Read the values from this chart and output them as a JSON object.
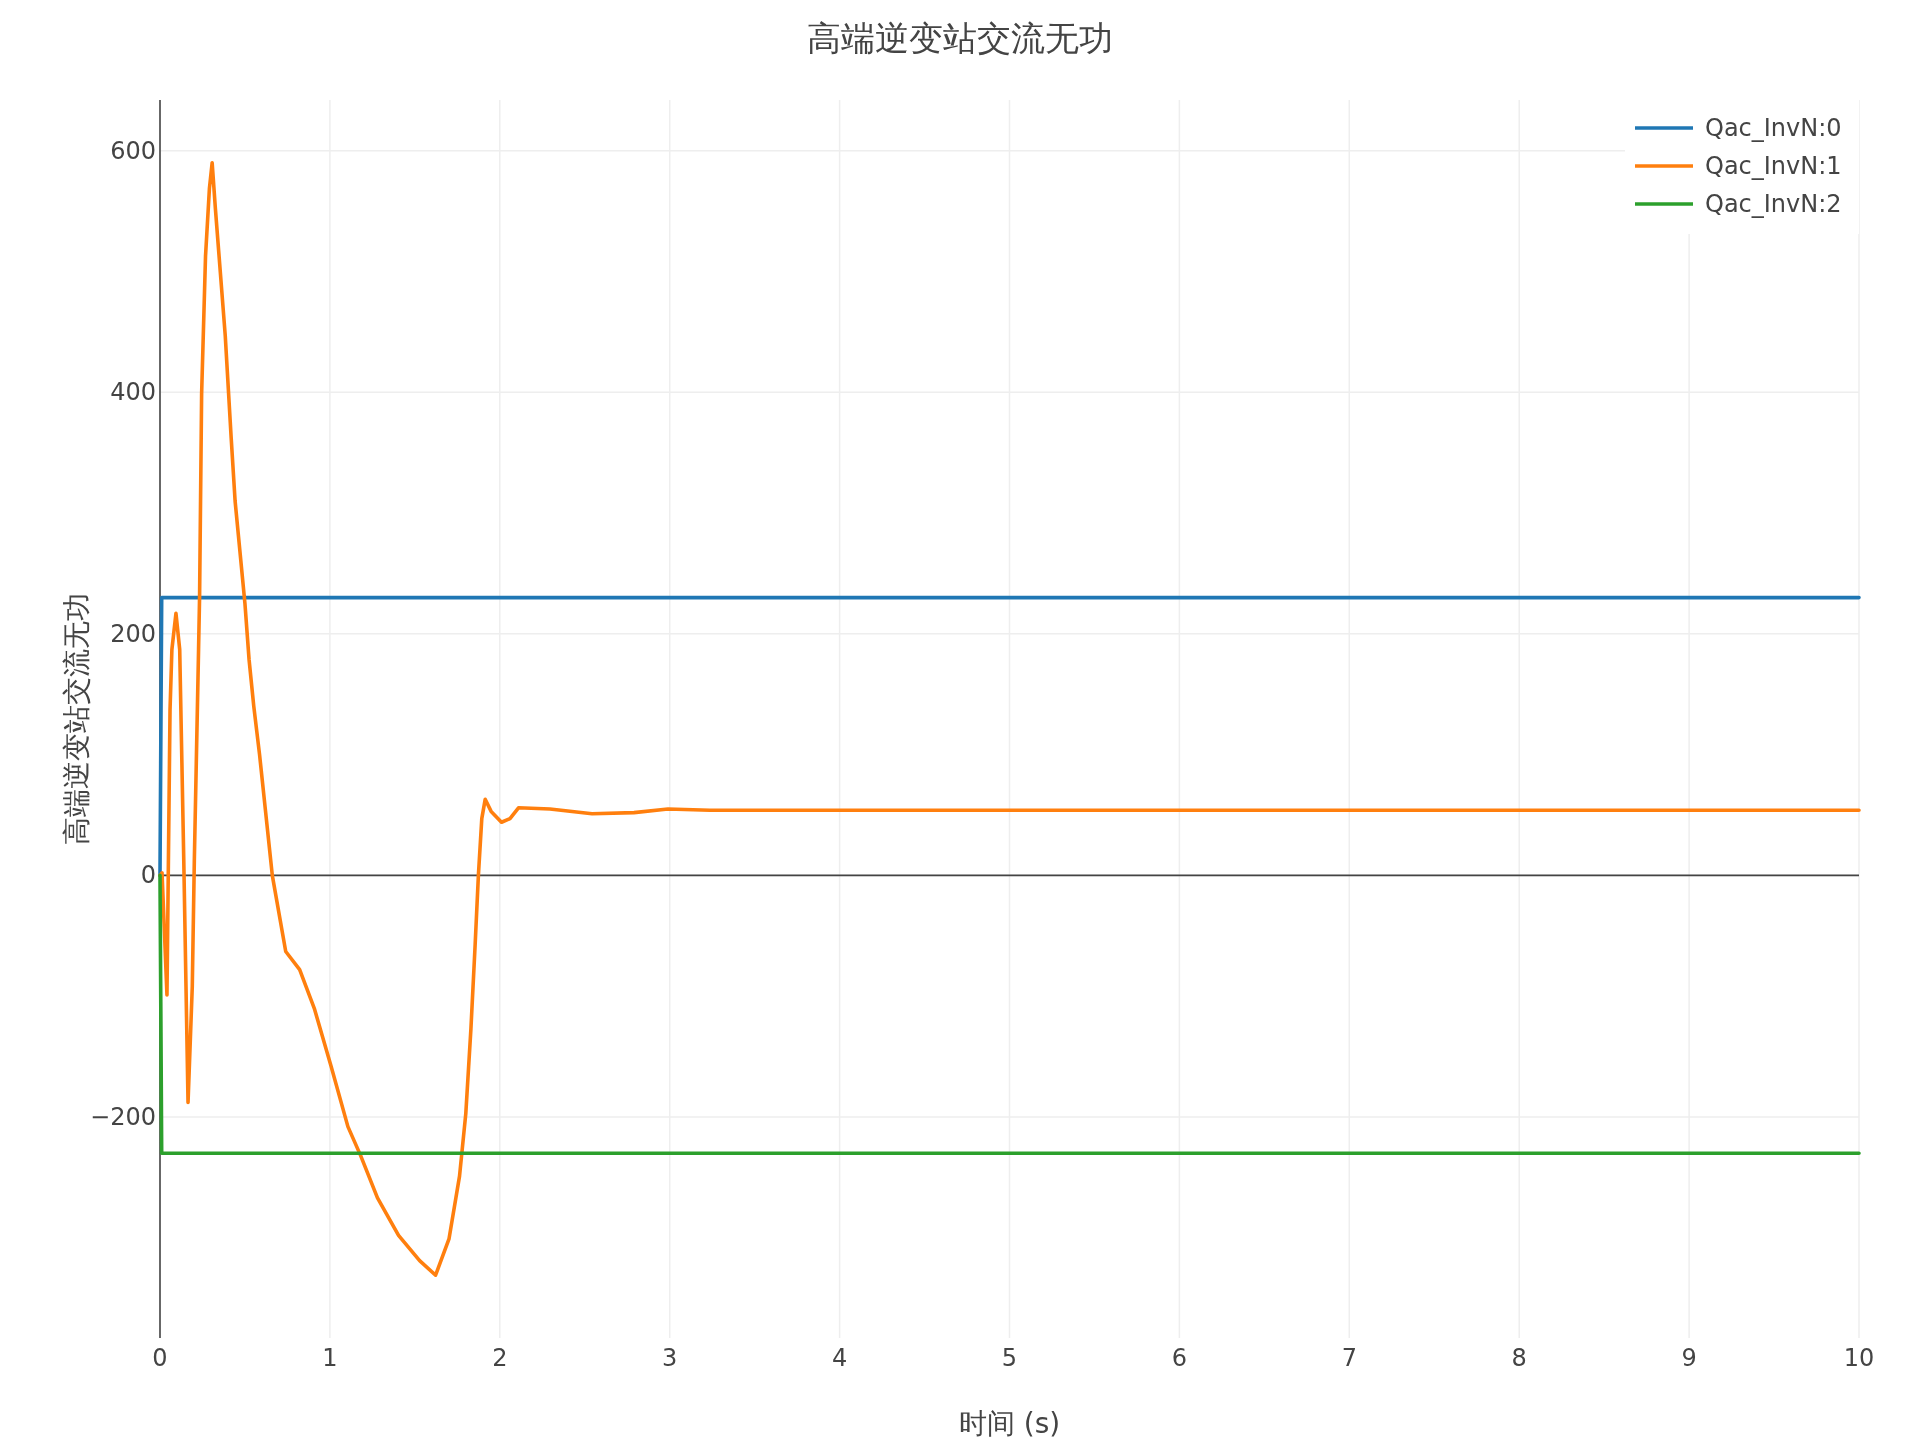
{
  "chart_data": {
    "type": "line",
    "title": "高端逆变站交流无功",
    "xlabel": "时间 (s)",
    "ylabel": "高端逆变站交流无功",
    "series": [
      {
        "name": "Qac_InvN:0",
        "color": "#1f77b4",
        "x": [
          0,
          0.01,
          10
        ],
        "values": [
          0,
          230,
          230
        ]
      },
      {
        "name": "Qac_InvN:1",
        "color": "#ff7f0e",
        "x": [
          0,
          0.012,
          0.041,
          0.059,
          0.07,
          0.094,
          0.116,
          0.14,
          0.153,
          0.165,
          0.19,
          0.202,
          0.227,
          0.233,
          0.245,
          0.268,
          0.291,
          0.307,
          0.326,
          0.384,
          0.419,
          0.442,
          0.5,
          0.524,
          0.552,
          0.586,
          0.661,
          0.74,
          0.822,
          0.908,
          1.007,
          1.106,
          1.181,
          1.28,
          1.404,
          1.528,
          1.622,
          1.701,
          1.763,
          1.8,
          1.83,
          1.855,
          1.874,
          1.894,
          1.914,
          1.949,
          2.01,
          2.06,
          2.11,
          2.295,
          2.543,
          2.79,
          2.99,
          3.236,
          3.5,
          4,
          4.5,
          5,
          5.5,
          6,
          6.5,
          7,
          7.5,
          8,
          8.5,
          9,
          9.5,
          10
        ],
        "values": [
          0,
          2,
          -99,
          137,
          187,
          217,
          187,
          12,
          -92,
          -188,
          -92,
          12,
          187,
          231,
          399,
          513,
          569,
          590,
          552,
          447,
          362,
          310,
          225,
          179,
          140,
          100,
          0,
          -63,
          -78,
          -110,
          -158,
          -208,
          -232,
          -267,
          -298,
          -319,
          -331,
          -301,
          -249,
          -197,
          -127,
          -57,
          0,
          47,
          63,
          53,
          44,
          47,
          56,
          55,
          51,
          52,
          55,
          54,
          54,
          54,
          54,
          54,
          54,
          54,
          54,
          54,
          54,
          54,
          54,
          54,
          54,
          54
        ]
      },
      {
        "name": "Qac_InvN:2",
        "color": "#2ca02c",
        "x": [
          0,
          0.01,
          10
        ],
        "values": [
          0,
          -230,
          -230
        ]
      }
    ],
    "xlim": [
      0,
      10
    ],
    "ylim": [
      -383,
      642
    ],
    "xticks": [
      0,
      1,
      2,
      3,
      4,
      5,
      6,
      7,
      8,
      9,
      10
    ],
    "yticks": [
      {
        "value": -200,
        "label": "−200"
      },
      0,
      200,
      400,
      600
    ],
    "grid": true,
    "legend": "top right",
    "ref_lines": [
      {
        "axis": "y",
        "value": 0,
        "color": "#444444"
      }
    ]
  }
}
